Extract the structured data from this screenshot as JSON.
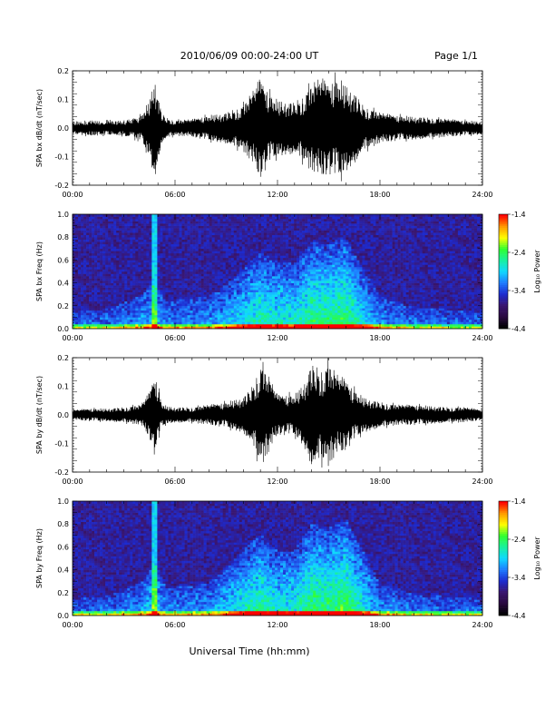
{
  "header": {
    "title": "2010/06/09  00:00-24:00 UT",
    "page": "Page 1/1"
  },
  "xlabel": "Universal Time (hh:mm)",
  "colors": {
    "trace": "#000000",
    "colormap": [
      "#000000",
      "#2a0a40",
      "#3a1670",
      "#1d2bd0",
      "#1f7cff",
      "#10d8ff",
      "#18f0a0",
      "#30ff30",
      "#ffff00",
      "#ff9a00",
      "#ff0000"
    ]
  },
  "chart_data": [
    {
      "type": "line",
      "ylabel": "SPA bx dB/dt (nT/sec)",
      "xlim": [
        0,
        24
      ],
      "ylim": [
        -0.2,
        0.2
      ],
      "x_ticks": [
        "00:00",
        "06:00",
        "12:00",
        "18:00",
        "24:00"
      ],
      "y_ticks": [
        "0.2",
        "0.1",
        "0.0",
        "-0.1",
        "-0.2"
      ],
      "y_tick_values": [
        0.2,
        0.1,
        0.0,
        -0.1,
        -0.2
      ],
      "series": [
        {
          "x_hours": [
            0,
            1,
            2,
            3,
            4,
            4.5,
            4.8,
            5,
            5.2,
            5.5,
            6,
            7,
            8,
            9,
            10,
            10.5,
            11,
            11.5,
            12,
            13,
            13.5,
            14,
            14.5,
            15,
            15.5,
            16,
            16.5,
            17,
            18,
            19,
            20,
            21,
            22,
            23,
            24
          ],
          "amplitude": [
            0.025,
            0.03,
            0.028,
            0.03,
            0.05,
            0.11,
            0.2,
            0.14,
            0.06,
            0.04,
            0.03,
            0.035,
            0.05,
            0.06,
            0.09,
            0.14,
            0.2,
            0.14,
            0.11,
            0.1,
            0.13,
            0.17,
            0.2,
            0.18,
            0.2,
            0.17,
            0.14,
            0.09,
            0.06,
            0.05,
            0.045,
            0.04,
            0.035,
            0.03,
            0.025
          ]
        }
      ]
    },
    {
      "type": "heatmap",
      "ylabel": "SPA bx Freq (Hz)",
      "xlim": [
        0,
        24
      ],
      "ylim": [
        0.0,
        1.0
      ],
      "x_ticks": [
        "00:00",
        "06:00",
        "12:00",
        "18:00",
        "24:00"
      ],
      "y_ticks": [
        "1.0",
        "0.8",
        "0.6",
        "0.4",
        "0.2",
        "0.0"
      ],
      "y_tick_values": [
        1.0,
        0.8,
        0.6,
        0.4,
        0.2,
        0.0
      ],
      "colorbar": {
        "label": "Log₁₀ Power",
        "ticks": [
          "-1.4",
          "-2.4",
          "-3.4",
          "-4.4"
        ],
        "tick_values": [
          -1.4,
          -2.4,
          -3.4,
          -4.4
        ],
        "range": [
          -4.4,
          -1.4
        ]
      },
      "activity_hours": [
        0,
        2,
        4,
        4.8,
        5.5,
        8,
        10,
        11,
        12,
        13,
        14,
        15,
        16,
        17,
        18,
        20,
        24
      ],
      "activity_level": [
        0.15,
        0.18,
        0.3,
        0.45,
        0.25,
        0.3,
        0.55,
        0.7,
        0.62,
        0.6,
        0.8,
        0.78,
        0.85,
        0.55,
        0.3,
        0.2,
        0.15
      ]
    },
    {
      "type": "line",
      "ylabel": "SPA by dB/dt (nT/sec)",
      "xlim": [
        0,
        24
      ],
      "ylim": [
        -0.2,
        0.2
      ],
      "x_ticks": [
        "00:00",
        "06:00",
        "12:00",
        "18:00",
        "24:00"
      ],
      "y_ticks": [
        "0.2",
        "0.1",
        "0.0",
        "-0.1",
        "-0.2"
      ],
      "y_tick_values": [
        0.2,
        0.1,
        0.0,
        -0.1,
        -0.2
      ],
      "series": [
        {
          "x_hours": [
            0,
            1,
            2,
            3,
            4,
            4.5,
            4.8,
            5,
            5.2,
            5.5,
            6,
            7,
            8,
            9,
            10,
            10.5,
            11,
            11.5,
            12,
            13,
            13.5,
            14,
            14.5,
            15,
            15.5,
            16,
            16.5,
            17,
            18,
            19,
            20,
            21,
            22,
            23,
            24
          ],
          "amplitude": [
            0.02,
            0.025,
            0.025,
            0.03,
            0.04,
            0.09,
            0.16,
            0.12,
            0.05,
            0.035,
            0.03,
            0.03,
            0.04,
            0.05,
            0.07,
            0.11,
            0.2,
            0.15,
            0.08,
            0.08,
            0.12,
            0.2,
            0.18,
            0.2,
            0.16,
            0.14,
            0.1,
            0.07,
            0.05,
            0.04,
            0.04,
            0.035,
            0.03,
            0.03,
            0.02
          ]
        }
      ]
    },
    {
      "type": "heatmap",
      "ylabel": "SPA by Freq (Hz)",
      "xlim": [
        0,
        24
      ],
      "ylim": [
        0.0,
        1.0
      ],
      "x_ticks": [
        "00:00",
        "06:00",
        "12:00",
        "18:00",
        "24:00"
      ],
      "y_ticks": [
        "1.0",
        "0.8",
        "0.6",
        "0.4",
        "0.2",
        "0.0"
      ],
      "y_tick_values": [
        1.0,
        0.8,
        0.6,
        0.4,
        0.2,
        0.0
      ],
      "colorbar": {
        "label": "Log₁₀ Power",
        "ticks": [
          "-1.4",
          "-2.4",
          "-3.4",
          "-4.4"
        ],
        "tick_values": [
          -1.4,
          -2.4,
          -3.4,
          -4.4
        ],
        "range": [
          -4.4,
          -1.4
        ]
      },
      "activity_hours": [
        0,
        2,
        4,
        4.8,
        5.5,
        8,
        10,
        11,
        12,
        13,
        14,
        15,
        16,
        17,
        18,
        20,
        24
      ],
      "activity_level": [
        0.15,
        0.18,
        0.3,
        0.5,
        0.25,
        0.3,
        0.6,
        0.75,
        0.6,
        0.6,
        0.85,
        0.8,
        0.9,
        0.6,
        0.3,
        0.2,
        0.15
      ]
    }
  ]
}
